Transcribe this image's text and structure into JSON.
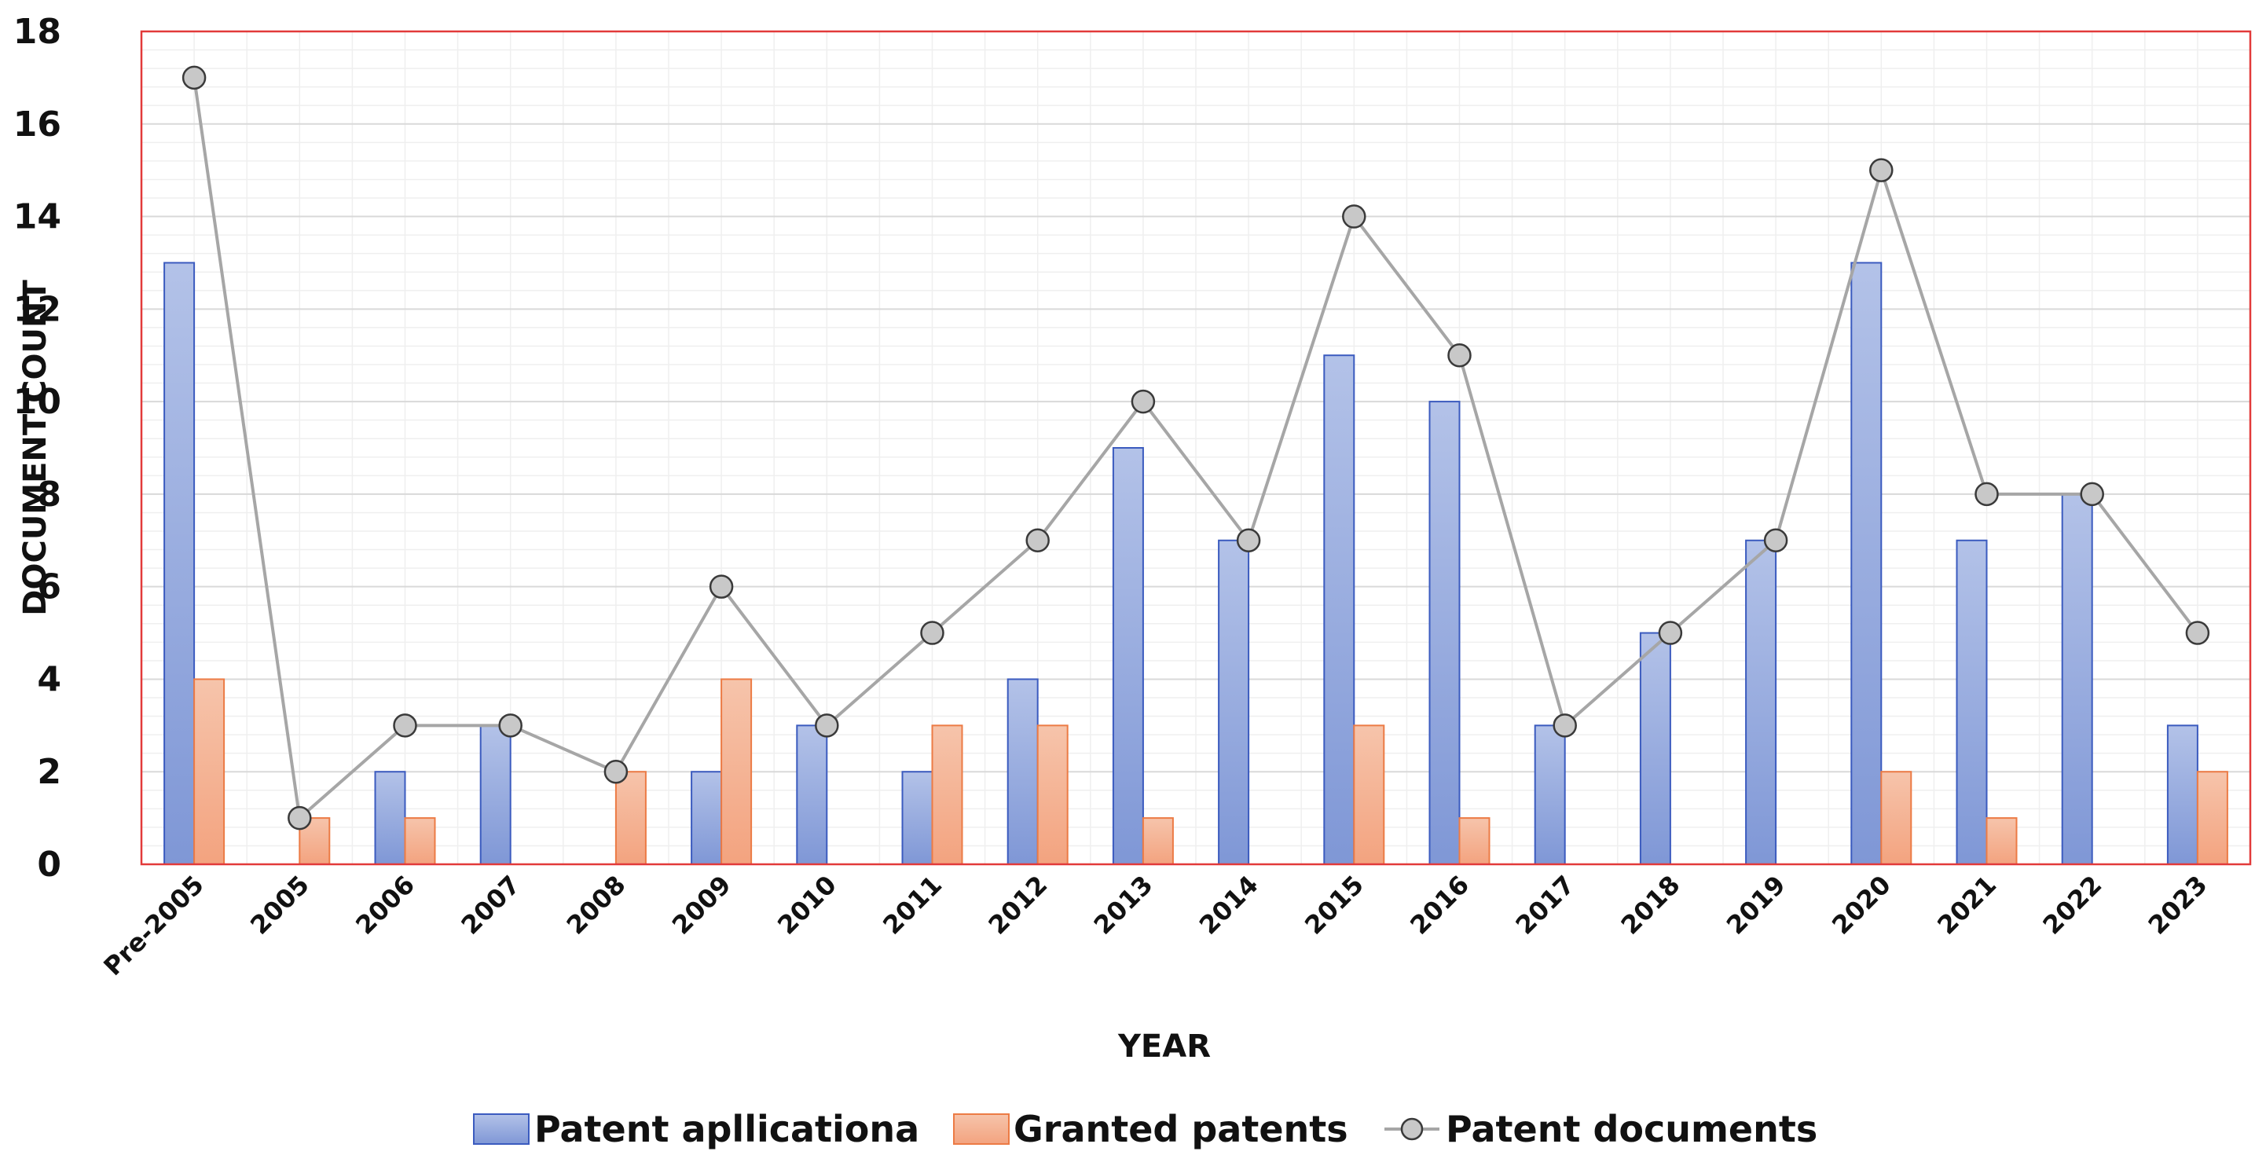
{
  "chart_data": {
    "type": "bar",
    "title": "",
    "xlabel": "YEAR",
    "ylabel": "DOCUMENT COUNT",
    "ylim": [
      0,
      18
    ],
    "ytick_step": 2,
    "categories": [
      "Pre-2005",
      "2005",
      "2006",
      "2007",
      "2008",
      "2009",
      "2010",
      "2011",
      "2012",
      "2013",
      "2014",
      "2015",
      "2016",
      "2017",
      "2018",
      "2019",
      "2020",
      "2021",
      "2022",
      "2023"
    ],
    "series": [
      {
        "name": "Patent apllicationa",
        "kind": "bar",
        "color": "#8ea3d8",
        "edge": "#3b5bbf",
        "values": [
          13,
          0,
          2,
          3,
          0,
          2,
          3,
          2,
          4,
          9,
          7,
          11,
          10,
          3,
          5,
          7,
          13,
          7,
          8,
          3
        ]
      },
      {
        "name": "Granted patents",
        "kind": "bar",
        "color": "#f7b89a",
        "edge": "#ec7b45",
        "values": [
          4,
          1,
          1,
          0,
          2,
          4,
          0,
          3,
          3,
          1,
          0,
          3,
          1,
          0,
          0,
          0,
          2,
          1,
          0,
          2
        ]
      },
      {
        "name": "Patent documents",
        "kind": "line",
        "color": "#a6a6a6",
        "marker_fill": "#c8c8c8",
        "values": [
          17,
          1,
          3,
          3,
          2,
          6,
          3,
          5,
          7,
          10,
          7,
          14,
          11,
          3,
          5,
          7,
          15,
          8,
          8,
          5
        ]
      }
    ],
    "legend_position": "bottom",
    "grid": true
  }
}
